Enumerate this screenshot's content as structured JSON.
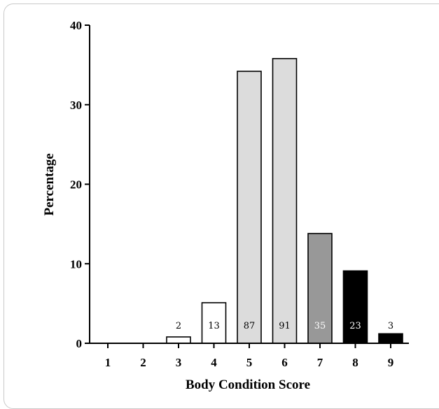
{
  "chart_data": {
    "type": "bar",
    "title": "",
    "xlabel": "Body Condition Score",
    "ylabel": "Percentage",
    "categories": [
      "1",
      "2",
      "3",
      "4",
      "5",
      "6",
      "7",
      "8",
      "9"
    ],
    "values": [
      0,
      0,
      0.8,
      5.1,
      34.2,
      35.8,
      13.8,
      9.1,
      1.2
    ],
    "counts": [
      "",
      "",
      "2",
      "13",
      "87",
      "91",
      "35",
      "23",
      "3"
    ],
    "bar_colors": [
      "#ffffff",
      "#ffffff",
      "#ffffff",
      "#ffffff",
      "#dcdcdc",
      "#dcdcdc",
      "#989898",
      "#000000",
      "#000000"
    ],
    "label_colors": [
      "#000000",
      "#000000",
      "#000000",
      "#000000",
      "#000000",
      "#000000",
      "#ffffff",
      "#ffffff",
      "#000000"
    ],
    "ylim": [
      0,
      40
    ],
    "yticks": [
      "0",
      "10",
      "20",
      "30",
      "40"
    ],
    "grid": false,
    "legend": "none"
  }
}
